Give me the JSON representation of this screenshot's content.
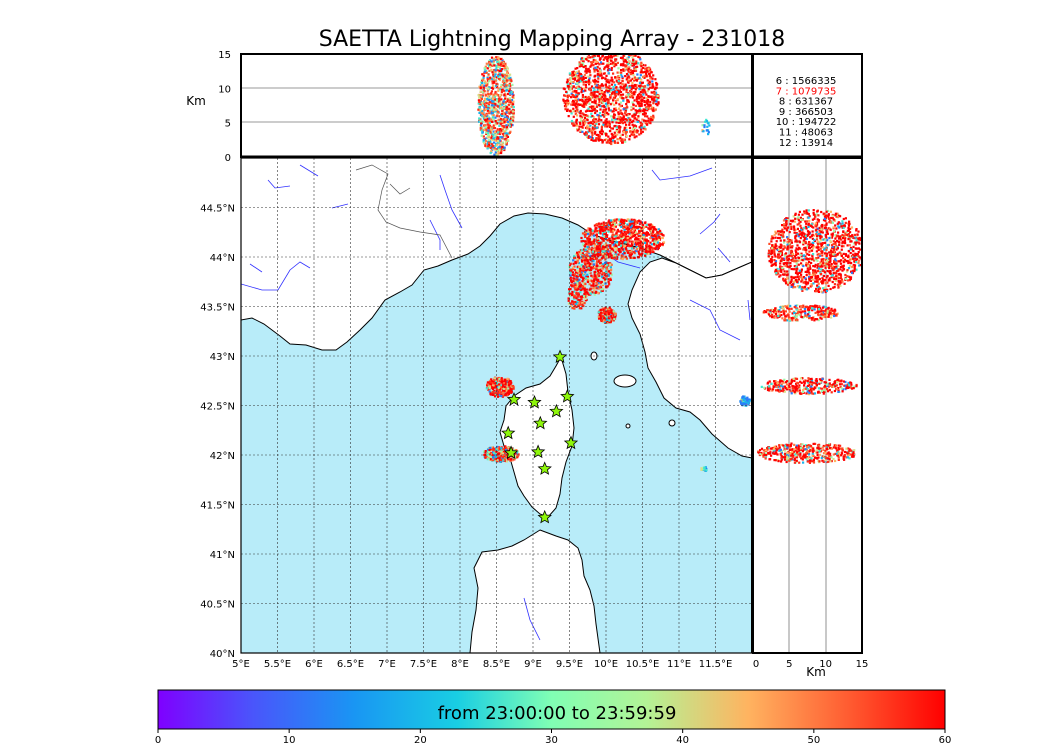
{
  "title": "SAETTA Lightning Mapping Array - 231018",
  "colors": {
    "sea": "#b8ecf9",
    "land": "#ffffff",
    "river": "#3030ff",
    "coast": "#000000",
    "border": "#555555",
    "station": "#8ef60b",
    "highlight": "#ff0000",
    "text": "#000000"
  },
  "legend_counts": [
    {
      "label": "6  :  1566335",
      "highlight": false
    },
    {
      "label": "7  :  1079735",
      "highlight": true
    },
    {
      "label": "8  :   631367",
      "highlight": false
    },
    {
      "label": "9  :   366503",
      "highlight": false
    },
    {
      "label": "10  :   194722",
      "highlight": false
    },
    {
      "label": "11  :    48063",
      "highlight": false
    },
    {
      "label": "12  :    13914",
      "highlight": false
    }
  ],
  "stations_icon": "star-icon",
  "chart_data": [
    {
      "type": "scatter",
      "name": "top-altitude-longitude",
      "ylabel": "Km",
      "ylim": [
        0,
        15
      ],
      "yticks": [
        "0",
        "5",
        "10",
        "15"
      ],
      "xlim": [
        5,
        12
      ]
    },
    {
      "type": "scatter",
      "name": "plan-view-map",
      "xlim": [
        5,
        12
      ],
      "ylim": [
        40,
        45
      ],
      "xticks": [
        "5°E",
        "5.5°E",
        "6°E",
        "6.5°E",
        "7°E",
        "7.5°E",
        "8°E",
        "8.5°E",
        "9°E",
        "9.5°E",
        "10°E",
        "10.5°E",
        "11°E",
        "11.5°E"
      ],
      "yticks": [
        "40°N",
        "40.5°N",
        "41°N",
        "41.5°N",
        "42°N",
        "42.5°N",
        "43°N",
        "43.5°N",
        "44°N",
        "44.5°N"
      ],
      "grid": true,
      "stations": [
        {
          "lon": 9.37,
          "lat": 42.99
        },
        {
          "lon": 8.74,
          "lat": 42.56
        },
        {
          "lon": 9.02,
          "lat": 42.53
        },
        {
          "lon": 9.47,
          "lat": 42.59
        },
        {
          "lon": 9.32,
          "lat": 42.44
        },
        {
          "lon": 9.1,
          "lat": 42.32
        },
        {
          "lon": 8.66,
          "lat": 42.22
        },
        {
          "lon": 9.52,
          "lat": 42.12
        },
        {
          "lon": 8.7,
          "lat": 42.02
        },
        {
          "lon": 9.07,
          "lat": 42.03
        },
        {
          "lon": 9.16,
          "lat": 41.86
        },
        {
          "lon": 9.16,
          "lat": 41.37
        }
      ]
    },
    {
      "type": "scatter",
      "name": "right-altitude-latitude",
      "xlabel": "Km",
      "xlim": [
        0,
        15
      ],
      "xticks": [
        "0",
        "5",
        "10",
        "15"
      ],
      "ylim": [
        40,
        45
      ]
    },
    {
      "type": "colorbar",
      "name": "time-colorbar",
      "label": "from 23:00:00 to 23:59:59",
      "range": [
        0,
        60
      ],
      "ticks": [
        "0",
        "10",
        "20",
        "30",
        "40",
        "50",
        "60"
      ]
    }
  ]
}
